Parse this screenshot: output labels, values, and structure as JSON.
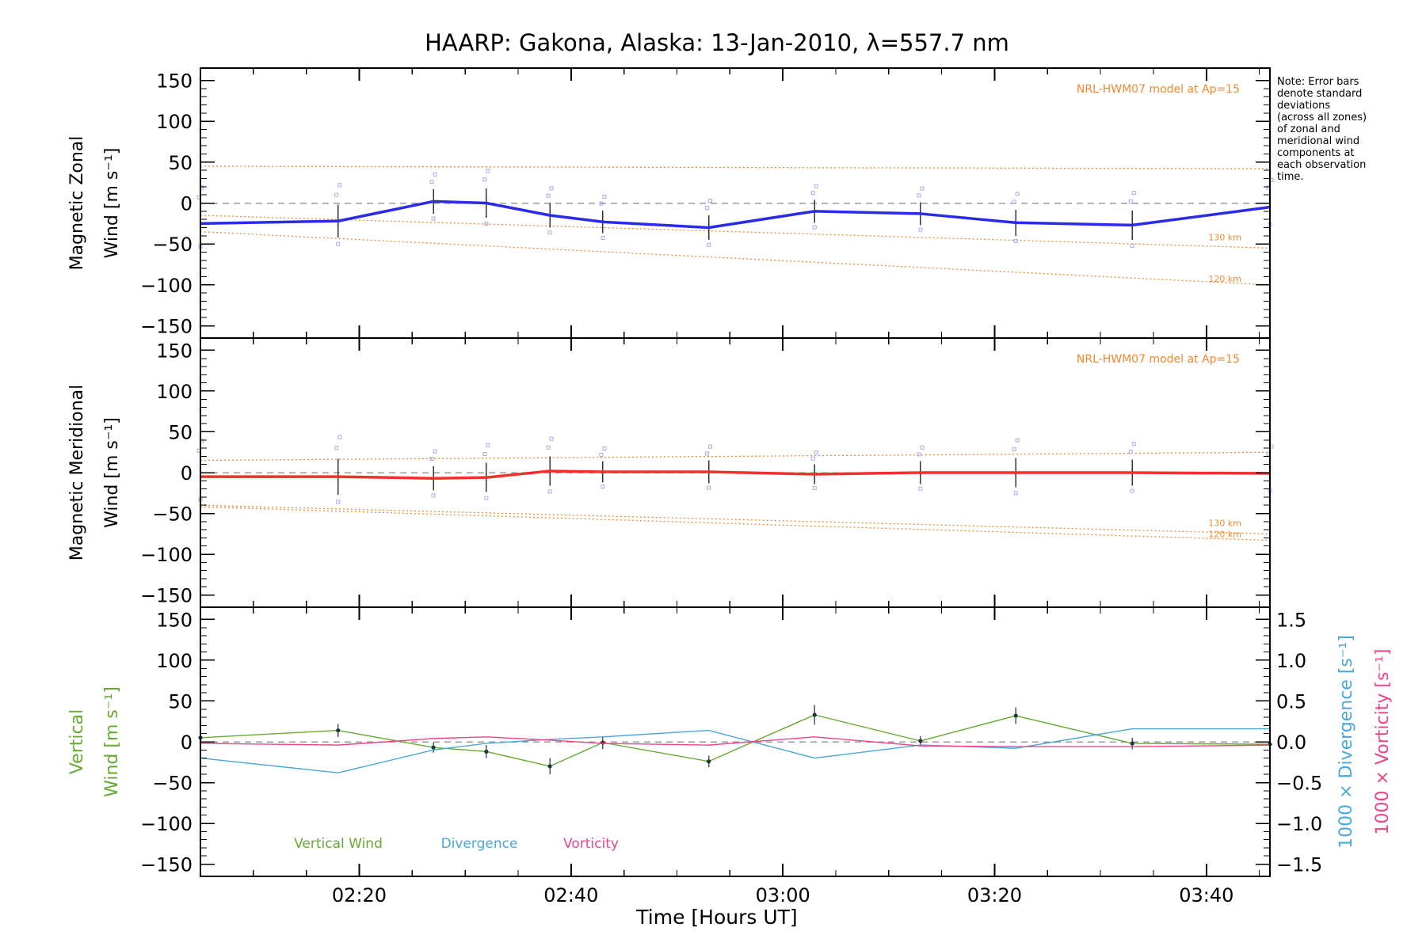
{
  "title": "HAARP: Gakona,  Alaska: 13-Jan-2010, λ=557.7 nm",
  "note": [
    "Note: Error bars",
    "denote standard",
    "deviations",
    "(across all zones)",
    "of zonal and",
    "meridional wind",
    "components at",
    "each observation",
    "time."
  ],
  "colors": {
    "zonal": "#2a2ae8",
    "meridional": "#f0302a",
    "model": "#f08a30",
    "vertical": "#66aa33",
    "divergence": "#4aa8d8",
    "vorticity": "#ee4488",
    "zero_line": "#999999",
    "error_bar": "#333333",
    "spread_markers": "#aaaaee"
  },
  "chart_data": [
    {
      "type": "line",
      "ylabel_lines": [
        "Magnetic Zonal",
        "Wind [m s⁻¹]"
      ],
      "ylim": [
        -165,
        165
      ],
      "yticks": [
        150,
        100,
        50,
        0,
        -50,
        -100,
        -150
      ],
      "model_label": "NRL-HWM07 model at Ap=15",
      "model_lines": [
        {
          "label": "",
          "x": [
            "02:05",
            "03:46"
          ],
          "y": [
            45,
            42
          ]
        },
        {
          "label": "130 km",
          "x": [
            "02:05",
            "03:46"
          ],
          "y": [
            -15,
            -55
          ]
        },
        {
          "label": "120 km",
          "x": [
            "02:05",
            "03:46"
          ],
          "y": [
            -35,
            -100
          ]
        }
      ],
      "series": [
        {
          "name": "Zonal wind",
          "x": [
            "02:05",
            "02:18",
            "02:27",
            "02:32",
            "02:38",
            "02:43",
            "02:53",
            "03:03",
            "03:13",
            "03:22",
            "03:33",
            "03:46"
          ],
          "y": [
            -25,
            -22,
            2,
            0,
            -15,
            -23,
            -30,
            -10,
            -13,
            -24,
            -27,
            -5
          ],
          "err": [
            20,
            20,
            15,
            18,
            15,
            14,
            15,
            14,
            14,
            16,
            18,
            15
          ]
        }
      ]
    },
    {
      "type": "line",
      "ylabel_lines": [
        "Magnetic Meridional",
        "Wind [m s⁻¹]"
      ],
      "ylim": [
        -165,
        165
      ],
      "yticks": [
        150,
        100,
        50,
        0,
        -50,
        -100,
        -150
      ],
      "model_label": "NRL-HWM07 model at Ap=15",
      "model_lines": [
        {
          "label": "",
          "x": [
            "02:05",
            "03:46"
          ],
          "y": [
            15,
            25
          ]
        },
        {
          "label": "130 km",
          "x": [
            "02:05",
            "03:46"
          ],
          "y": [
            -40,
            -75
          ]
        },
        {
          "label": "120 km",
          "x": [
            "02:05",
            "03:46"
          ],
          "y": [
            -42,
            -83
          ]
        }
      ],
      "series": [
        {
          "name": "Meridional wind",
          "x": [
            "02:05",
            "02:18",
            "02:27",
            "02:32",
            "02:38",
            "02:43",
            "02:53",
            "03:03",
            "03:13",
            "03:22",
            "03:33",
            "03:46"
          ],
          "y": [
            -5,
            -5,
            -7,
            -6,
            2,
            1,
            1,
            -2,
            0,
            0,
            0,
            -1
          ],
          "err": [
            20,
            22,
            15,
            18,
            18,
            13,
            14,
            12,
            14,
            18,
            16,
            15
          ]
        }
      ]
    },
    {
      "type": "line",
      "ylabel_lines": [
        "Vertical",
        "Wind [m s⁻¹]"
      ],
      "ylabel_right1": "1000 × Divergence [s⁻¹]",
      "ylabel_right2": "1000 × Vorticity [s⁻¹]",
      "ylim": [
        -165,
        165
      ],
      "yticks": [
        150,
        100,
        50,
        0,
        -50,
        -100,
        -150
      ],
      "y2lim": [
        -1.65,
        1.65
      ],
      "y2ticks": [
        1.5,
        1.0,
        0.5,
        0.0,
        -0.5,
        -1.0,
        -1.5
      ],
      "y2tick_labels": [
        "1.5",
        "1.0",
        "0.5",
        "0.0",
        "−0.5",
        "−1.0",
        "−1.5"
      ],
      "legend": [
        "Vertical Wind",
        "Divergence",
        "Vorticity"
      ],
      "series": [
        {
          "name": "Vertical Wind",
          "axis": "left",
          "x": [
            "02:05",
            "02:18",
            "02:27",
            "02:32",
            "02:38",
            "02:43",
            "02:53",
            "03:03",
            "03:13",
            "03:22",
            "03:33",
            "03:46"
          ],
          "y": [
            5,
            14,
            -7,
            -12,
            -30,
            -1,
            -24,
            33,
            1,
            32,
            -2,
            -3
          ],
          "err": [
            8,
            8,
            6,
            8,
            10,
            8,
            7,
            12,
            6,
            10,
            7,
            5
          ]
        },
        {
          "name": "Divergence",
          "axis": "right",
          "x": [
            "02:05",
            "02:18",
            "02:27",
            "02:32",
            "02:38",
            "02:43",
            "02:53",
            "03:03",
            "03:13",
            "03:22",
            "03:33",
            "03:46"
          ],
          "y": [
            -0.2,
            -0.38,
            -0.1,
            -0.02,
            0.03,
            0.06,
            0.14,
            -0.2,
            -0.04,
            -0.08,
            0.16,
            0.16
          ]
        },
        {
          "name": "Vorticity",
          "axis": "right",
          "x": [
            "02:05",
            "02:18",
            "02:27",
            "02:32",
            "02:38",
            "02:43",
            "02:53",
            "03:03",
            "03:13",
            "03:22",
            "03:33",
            "03:46"
          ],
          "y": [
            -0.02,
            -0.04,
            0.04,
            0.06,
            0.02,
            -0.02,
            -0.04,
            0.06,
            -0.05,
            -0.06,
            -0.06,
            -0.04
          ]
        }
      ]
    }
  ],
  "xaxis": {
    "xlabel": "Time [Hours UT]",
    "xlim": [
      "02:05",
      "03:46"
    ],
    "ticks": [
      "02:20",
      "02:40",
      "03:00",
      "03:20",
      "03:40"
    ]
  }
}
